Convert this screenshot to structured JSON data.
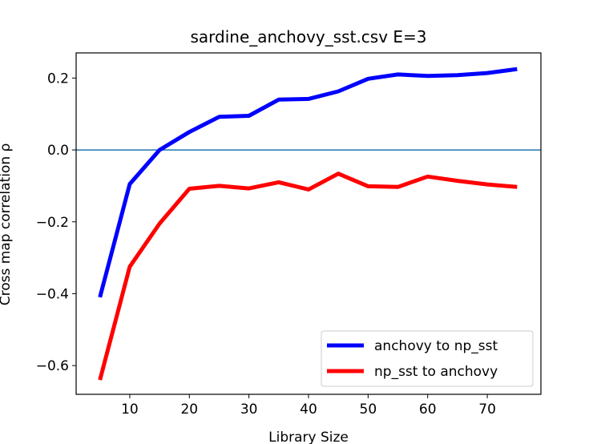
{
  "chart_data": {
    "type": "line",
    "title": "sardine_anchovy_sst.csv  E=3",
    "xlabel": "Library Size",
    "ylabel": "Cross map correlation  ρ",
    "xlim": [
      1,
      79
    ],
    "ylim": [
      -0.68,
      0.27
    ],
    "xticks": [
      10,
      20,
      30,
      40,
      50,
      60,
      70
    ],
    "yticks": [
      -0.6,
      -0.4,
      -0.2,
      0.0,
      0.2
    ],
    "ytick_labels": [
      "−0.6",
      "−0.4",
      "−0.2",
      "0.0",
      "0.2"
    ],
    "grid": false,
    "legend_position": "lower-right",
    "reference_line": {
      "y": 0.0,
      "color": "#1f77b4"
    },
    "x": [
      5,
      10,
      15,
      20,
      25,
      30,
      35,
      40,
      45,
      50,
      55,
      60,
      65,
      70,
      75
    ],
    "series": [
      {
        "name": "anchovy to np_sst",
        "color": "#0000ff",
        "values": [
          -0.41,
          -0.095,
          0.0,
          0.05,
          0.092,
          0.095,
          0.14,
          0.142,
          0.163,
          0.198,
          0.21,
          0.206,
          0.208,
          0.214,
          0.225
        ]
      },
      {
        "name": "np_sst to anchovy",
        "color": "#ff0000",
        "values": [
          -0.64,
          -0.325,
          -0.205,
          -0.108,
          -0.1,
          -0.107,
          -0.09,
          -0.11,
          -0.066,
          -0.101,
          -0.103,
          -0.074,
          -0.086,
          -0.096,
          -0.103
        ]
      }
    ]
  }
}
